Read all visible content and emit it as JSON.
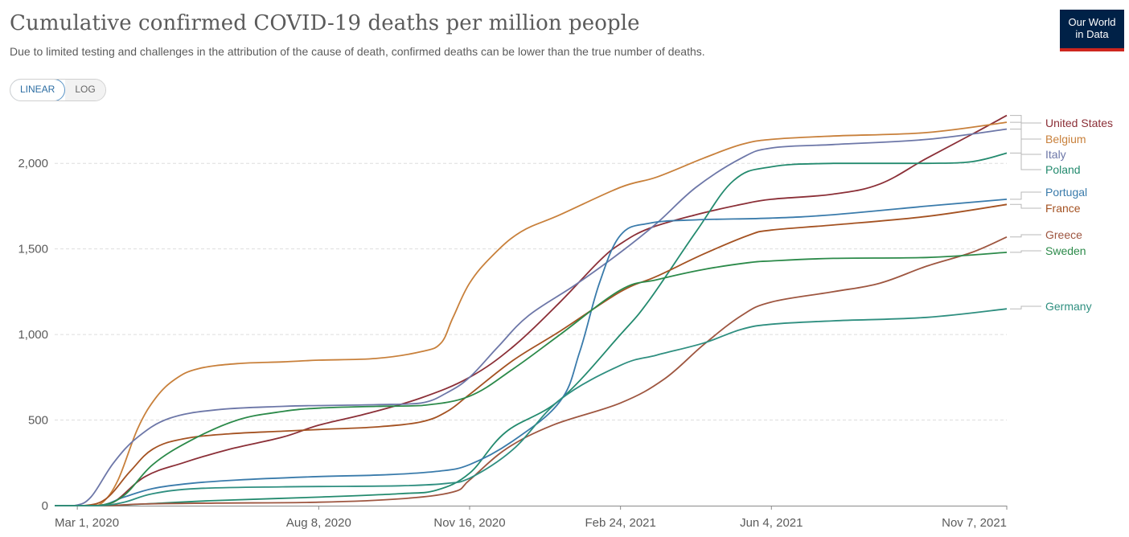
{
  "header": {
    "title": "Cumulative confirmed COVID-19 deaths per million people",
    "subtitle": "Due to limited testing and challenges in the attribution of the cause of death, confirmed deaths can be lower than the true number of deaths.",
    "logo_line1": "Our World",
    "logo_line2": "in Data"
  },
  "scale_toggle": {
    "linear_label": "LINEAR",
    "log_label": "LOG",
    "selected": "LINEAR"
  },
  "colors": {
    "brand_navy": "#002147",
    "brand_red": "#ce261e",
    "toggle_accent": "#2d6ea3"
  },
  "chart_data": {
    "type": "line",
    "title": "Cumulative confirmed COVID-19 deaths per million people",
    "xlabel": "",
    "ylabel": "",
    "x_ticks": [
      "Mar 1, 2020",
      "Aug 8, 2020",
      "Nov 16, 2020",
      "Feb 24, 2021",
      "Jun 4, 2021",
      "Nov 7, 2021"
    ],
    "y_ticks": [
      0,
      500,
      1000,
      1500,
      2000
    ],
    "y_tick_labels": [
      "0",
      "500",
      "1,000",
      "1,500",
      "2,000"
    ],
    "xlim": [
      "2020-02-15",
      "2021-11-07"
    ],
    "ylim": [
      0,
      2250
    ],
    "grid": "horizontal dashed",
    "legend": "right, end-of-line labels",
    "series": [
      {
        "name": "United States",
        "color": "#8b2f37",
        "label_value": 2300,
        "points": [
          [
            "2020-02-15",
            0
          ],
          [
            "2020-03-10",
            0
          ],
          [
            "2020-03-25",
            20
          ],
          [
            "2020-04-15",
            170
          ],
          [
            "2020-05-10",
            250
          ],
          [
            "2020-06-10",
            330
          ],
          [
            "2020-07-15",
            400
          ],
          [
            "2020-08-08",
            470
          ],
          [
            "2020-09-10",
            540
          ],
          [
            "2020-10-15",
            630
          ],
          [
            "2020-11-16",
            750
          ],
          [
            "2020-12-15",
            930
          ],
          [
            "2021-01-15",
            1190
          ],
          [
            "2021-02-10",
            1430
          ],
          [
            "2021-02-24",
            1530
          ],
          [
            "2021-03-15",
            1620
          ],
          [
            "2021-04-15",
            1700
          ],
          [
            "2021-05-15",
            1760
          ],
          [
            "2021-06-04",
            1790
          ],
          [
            "2021-07-15",
            1820
          ],
          [
            "2021-08-15",
            1880
          ],
          [
            "2021-09-15",
            2030
          ],
          [
            "2021-10-15",
            2170
          ],
          [
            "2021-11-07",
            2280
          ]
        ]
      },
      {
        "name": "Belgium",
        "color": "#c8803b",
        "label_value": 2210,
        "points": [
          [
            "2020-02-15",
            0
          ],
          [
            "2020-03-10",
            0
          ],
          [
            "2020-03-18",
            20
          ],
          [
            "2020-03-28",
            150
          ],
          [
            "2020-04-10",
            450
          ],
          [
            "2020-04-22",
            630
          ],
          [
            "2020-05-05",
            740
          ],
          [
            "2020-05-20",
            800
          ],
          [
            "2020-06-15",
            830
          ],
          [
            "2020-07-15",
            840
          ],
          [
            "2020-08-08",
            850
          ],
          [
            "2020-09-15",
            860
          ],
          [
            "2020-10-15",
            900
          ],
          [
            "2020-10-28",
            950
          ],
          [
            "2020-11-05",
            1100
          ],
          [
            "2020-11-16",
            1300
          ],
          [
            "2020-12-01",
            1460
          ],
          [
            "2020-12-20",
            1600
          ],
          [
            "2021-01-15",
            1700
          ],
          [
            "2021-02-24",
            1860
          ],
          [
            "2021-03-20",
            1920
          ],
          [
            "2021-04-20",
            2030
          ],
          [
            "2021-05-15",
            2110
          ],
          [
            "2021-06-04",
            2140
          ],
          [
            "2021-07-15",
            2160
          ],
          [
            "2021-09-15",
            2180
          ],
          [
            "2021-11-07",
            2240
          ]
        ]
      },
      {
        "name": "Italy",
        "color": "#6d77a8",
        "label_value": 2120,
        "points": [
          [
            "2020-02-15",
            0
          ],
          [
            "2020-02-28",
            0
          ],
          [
            "2020-03-10",
            50
          ],
          [
            "2020-03-25",
            250
          ],
          [
            "2020-04-10",
            400
          ],
          [
            "2020-05-01",
            510
          ],
          [
            "2020-06-01",
            560
          ],
          [
            "2020-07-15",
            580
          ],
          [
            "2020-08-08",
            585
          ],
          [
            "2020-09-15",
            590
          ],
          [
            "2020-10-15",
            600
          ],
          [
            "2020-11-01",
            660
          ],
          [
            "2020-11-16",
            750
          ],
          [
            "2020-12-05",
            930
          ],
          [
            "2020-12-25",
            1110
          ],
          [
            "2021-01-25",
            1290
          ],
          [
            "2021-02-24",
            1480
          ],
          [
            "2021-03-20",
            1650
          ],
          [
            "2021-04-15",
            1860
          ],
          [
            "2021-05-15",
            2030
          ],
          [
            "2021-06-04",
            2090
          ],
          [
            "2021-07-15",
            2110
          ],
          [
            "2021-09-15",
            2140
          ],
          [
            "2021-11-07",
            2200
          ]
        ]
      },
      {
        "name": "Poland",
        "color": "#238a6e",
        "label_value": 2030,
        "points": [
          [
            "2020-02-15",
            0
          ],
          [
            "2020-03-20",
            0
          ],
          [
            "2020-04-15",
            10
          ],
          [
            "2020-06-01",
            30
          ],
          [
            "2020-08-08",
            50
          ],
          [
            "2020-10-01",
            70
          ],
          [
            "2020-10-25",
            90
          ],
          [
            "2020-11-16",
            190
          ],
          [
            "2020-12-10",
            430
          ],
          [
            "2021-01-15",
            620
          ],
          [
            "2021-02-24",
            1000
          ],
          [
            "2021-03-15",
            1200
          ],
          [
            "2021-04-15",
            1600
          ],
          [
            "2021-05-10",
            1900
          ],
          [
            "2021-06-04",
            1980
          ],
          [
            "2021-07-15",
            2000
          ],
          [
            "2021-09-15",
            2000
          ],
          [
            "2021-10-15",
            2010
          ],
          [
            "2021-11-07",
            2060
          ]
        ]
      },
      {
        "name": "Portugal",
        "color": "#3a7bab",
        "label_value": 1790,
        "points": [
          [
            "2020-02-15",
            0
          ],
          [
            "2020-03-15",
            0
          ],
          [
            "2020-04-01",
            50
          ],
          [
            "2020-04-20",
            100
          ],
          [
            "2020-05-15",
            130
          ],
          [
            "2020-06-15",
            150
          ],
          [
            "2020-08-08",
            170
          ],
          [
            "2020-09-20",
            180
          ],
          [
            "2020-10-25",
            200
          ],
          [
            "2020-11-16",
            240
          ],
          [
            "2020-12-15",
            380
          ],
          [
            "2021-01-15",
            610
          ],
          [
            "2021-01-28",
            900
          ],
          [
            "2021-02-10",
            1300
          ],
          [
            "2021-02-24",
            1580
          ],
          [
            "2021-03-15",
            1650
          ],
          [
            "2021-04-15",
            1670
          ],
          [
            "2021-06-04",
            1680
          ],
          [
            "2021-07-15",
            1700
          ],
          [
            "2021-09-15",
            1750
          ],
          [
            "2021-11-07",
            1790
          ]
        ]
      },
      {
        "name": "France",
        "color": "#a45222",
        "label_value": 1760,
        "points": [
          [
            "2020-02-15",
            0
          ],
          [
            "2020-03-05",
            0
          ],
          [
            "2020-03-20",
            40
          ],
          [
            "2020-04-05",
            200
          ],
          [
            "2020-04-20",
            330
          ],
          [
            "2020-05-10",
            390
          ],
          [
            "2020-06-10",
            420
          ],
          [
            "2020-07-15",
            435
          ],
          [
            "2020-08-08",
            445
          ],
          [
            "2020-09-15",
            460
          ],
          [
            "2020-10-15",
            490
          ],
          [
            "2020-11-01",
            550
          ],
          [
            "2020-11-16",
            650
          ],
          [
            "2020-12-15",
            850
          ],
          [
            "2021-01-15",
            1020
          ],
          [
            "2021-02-24",
            1250
          ],
          [
            "2021-03-20",
            1340
          ],
          [
            "2021-04-20",
            1470
          ],
          [
            "2021-05-20",
            1580
          ],
          [
            "2021-06-04",
            1610
          ],
          [
            "2021-07-15",
            1640
          ],
          [
            "2021-09-15",
            1690
          ],
          [
            "2021-11-07",
            1760
          ]
        ]
      },
      {
        "name": "Greece",
        "color": "#9e5640",
        "label_value": 1570,
        "points": [
          [
            "2020-02-15",
            0
          ],
          [
            "2020-03-20",
            0
          ],
          [
            "2020-04-15",
            10
          ],
          [
            "2020-06-01",
            15
          ],
          [
            "2020-08-08",
            20
          ],
          [
            "2020-10-01",
            40
          ],
          [
            "2020-11-05",
            80
          ],
          [
            "2020-11-16",
            150
          ],
          [
            "2020-12-10",
            330
          ],
          [
            "2021-01-10",
            470
          ],
          [
            "2021-02-24",
            600
          ],
          [
            "2021-03-25",
            740
          ],
          [
            "2021-04-20",
            940
          ],
          [
            "2021-05-15",
            1110
          ],
          [
            "2021-06-04",
            1190
          ],
          [
            "2021-07-15",
            1250
          ],
          [
            "2021-08-15",
            1300
          ],
          [
            "2021-09-15",
            1400
          ],
          [
            "2021-10-15",
            1480
          ],
          [
            "2021-11-07",
            1570
          ]
        ]
      },
      {
        "name": "Sweden",
        "color": "#2c8a4a",
        "label_value": 1480,
        "points": [
          [
            "2020-02-15",
            0
          ],
          [
            "2020-03-15",
            0
          ],
          [
            "2020-04-01",
            60
          ],
          [
            "2020-04-20",
            240
          ],
          [
            "2020-05-15",
            380
          ],
          [
            "2020-06-15",
            500
          ],
          [
            "2020-07-15",
            550
          ],
          [
            "2020-08-08",
            570
          ],
          [
            "2020-09-15",
            580
          ],
          [
            "2020-10-15",
            585
          ],
          [
            "2020-11-16",
            640
          ],
          [
            "2020-12-15",
            800
          ],
          [
            "2021-01-15",
            1000
          ],
          [
            "2021-02-24",
            1260
          ],
          [
            "2021-03-20",
            1320
          ],
          [
            "2021-04-20",
            1380
          ],
          [
            "2021-05-20",
            1420
          ],
          [
            "2021-06-04",
            1430
          ],
          [
            "2021-07-15",
            1445
          ],
          [
            "2021-09-15",
            1450
          ],
          [
            "2021-11-07",
            1480
          ]
        ]
      },
      {
        "name": "Germany",
        "color": "#2f8f80",
        "label_value": 1150,
        "points": [
          [
            "2020-02-15",
            0
          ],
          [
            "2020-03-15",
            0
          ],
          [
            "2020-04-01",
            20
          ],
          [
            "2020-04-20",
            70
          ],
          [
            "2020-05-20",
            100
          ],
          [
            "2020-07-15",
            110
          ],
          [
            "2020-08-08",
            112
          ],
          [
            "2020-10-01",
            116
          ],
          [
            "2020-11-01",
            130
          ],
          [
            "2020-11-16",
            160
          ],
          [
            "2020-12-15",
            330
          ],
          [
            "2021-01-15",
            620
          ],
          [
            "2021-02-24",
            820
          ],
          [
            "2021-03-20",
            880
          ],
          [
            "2021-04-20",
            950
          ],
          [
            "2021-05-15",
            1030
          ],
          [
            "2021-06-04",
            1060
          ],
          [
            "2021-07-15",
            1080
          ],
          [
            "2021-09-15",
            1100
          ],
          [
            "2021-11-07",
            1150
          ]
        ]
      }
    ]
  }
}
